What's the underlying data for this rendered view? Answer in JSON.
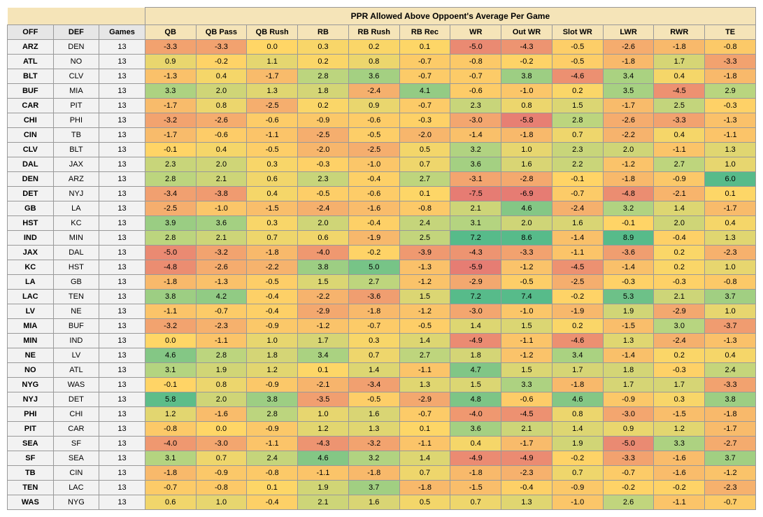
{
  "title": "PPR Allowed Above Oppoent's Average Per Game",
  "fixed_headers": [
    "OFF",
    "DEF",
    "Games"
  ],
  "data_headers": [
    "QB",
    "QB Pass",
    "QB Rush",
    "RB",
    "RB Rush",
    "RB Rec",
    "WR",
    "Out WR",
    "Slot WR",
    "LWR",
    "RWR",
    "TE"
  ],
  "color_scale": {
    "min": -6.0,
    "max": 6.0,
    "colors": [
      {
        "v": -6.0,
        "c": "#e67c73"
      },
      {
        "v": -3.0,
        "c": "#f3a66f"
      },
      {
        "v": 0.0,
        "c": "#ffd666"
      },
      {
        "v": 3.0,
        "c": "#b7d580"
      },
      {
        "v": 6.0,
        "c": "#57bb8a"
      }
    ]
  },
  "rows": [
    {
      "off": "ARZ",
      "def": "DEN",
      "games": 13,
      "vals": [
        -3.3,
        -3.3,
        0.0,
        0.3,
        0.2,
        0.1,
        -5.0,
        -4.3,
        -0.5,
        -2.6,
        -1.8,
        -0.8
      ]
    },
    {
      "off": "ATL",
      "def": "NO",
      "games": 13,
      "vals": [
        0.9,
        -0.2,
        1.1,
        0.2,
        0.8,
        -0.7,
        -0.8,
        -0.2,
        -0.5,
        -1.8,
        1.7,
        -3.3
      ]
    },
    {
      "off": "BLT",
      "def": "CLV",
      "games": 13,
      "vals": [
        -1.3,
        0.4,
        -1.7,
        2.8,
        3.6,
        -0.7,
        -0.7,
        3.8,
        -4.6,
        3.4,
        0.4,
        -1.8
      ]
    },
    {
      "off": "BUF",
      "def": "MIA",
      "games": 13,
      "vals": [
        3.3,
        2.0,
        1.3,
        1.8,
        -2.4,
        4.1,
        -0.6,
        -1.0,
        0.2,
        3.5,
        -4.5,
        2.9
      ]
    },
    {
      "off": "CAR",
      "def": "PIT",
      "games": 13,
      "vals": [
        -1.7,
        0.8,
        -2.5,
        0.2,
        0.9,
        -0.7,
        2.3,
        0.8,
        1.5,
        -1.7,
        2.5,
        -0.3
      ]
    },
    {
      "off": "CHI",
      "def": "PHI",
      "games": 13,
      "vals": [
        -3.2,
        -2.6,
        -0.6,
        -0.9,
        -0.6,
        -0.3,
        -3.0,
        -5.8,
        2.8,
        -2.6,
        -3.3,
        -1.3
      ]
    },
    {
      "off": "CIN",
      "def": "TB",
      "games": 13,
      "vals": [
        -1.7,
        -0.6,
        -1.1,
        -2.5,
        -0.5,
        -2.0,
        -1.4,
        -1.8,
        0.7,
        -2.2,
        0.4,
        -1.1
      ]
    },
    {
      "off": "CLV",
      "def": "BLT",
      "games": 13,
      "vals": [
        -0.1,
        0.4,
        -0.5,
        -2.0,
        -2.5,
        0.5,
        3.2,
        1.0,
        2.3,
        2.0,
        -1.1,
        1.3
      ]
    },
    {
      "off": "DAL",
      "def": "JAX",
      "games": 13,
      "vals": [
        2.3,
        2.0,
        0.3,
        -0.3,
        -1.0,
        0.7,
        3.6,
        1.6,
        2.2,
        -1.2,
        2.7,
        1.0
      ]
    },
    {
      "off": "DEN",
      "def": "ARZ",
      "games": 13,
      "vals": [
        2.8,
        2.1,
        0.6,
        2.3,
        -0.4,
        2.7,
        -3.1,
        -2.8,
        -0.1,
        -1.8,
        -0.9,
        6.0
      ]
    },
    {
      "off": "DET",
      "def": "NYJ",
      "games": 13,
      "vals": [
        -3.4,
        -3.8,
        0.4,
        -0.5,
        -0.6,
        0.1,
        -7.5,
        -6.9,
        -0.7,
        -4.8,
        -2.1,
        0.1
      ]
    },
    {
      "off": "GB",
      "def": "LA",
      "games": 13,
      "vals": [
        -2.5,
        -1.0,
        -1.5,
        -2.4,
        -1.6,
        -0.8,
        2.1,
        4.6,
        -2.4,
        3.2,
        1.4,
        -1.7
      ]
    },
    {
      "off": "HST",
      "def": "KC",
      "games": 13,
      "vals": [
        3.9,
        3.6,
        0.3,
        2.0,
        -0.4,
        2.4,
        3.1,
        2.0,
        1.6,
        -0.1,
        2.0,
        0.4
      ]
    },
    {
      "off": "IND",
      "def": "MIN",
      "games": 13,
      "vals": [
        2.8,
        2.1,
        0.7,
        0.6,
        -1.9,
        2.5,
        7.2,
        8.6,
        -1.4,
        8.9,
        -0.4,
        1.3
      ]
    },
    {
      "off": "JAX",
      "def": "DAL",
      "games": 13,
      "vals": [
        -5.0,
        -3.2,
        -1.8,
        -4.0,
        -0.2,
        -3.9,
        -4.3,
        -3.3,
        -1.1,
        -3.6,
        0.2,
        -2.3
      ]
    },
    {
      "off": "KC",
      "def": "HST",
      "games": 13,
      "vals": [
        -4.8,
        -2.6,
        -2.2,
        3.8,
        5.0,
        -1.3,
        -5.9,
        -1.2,
        -4.5,
        -1.4,
        0.2,
        1.0
      ]
    },
    {
      "off": "LA",
      "def": "GB",
      "games": 13,
      "vals": [
        -1.8,
        -1.3,
        -0.5,
        1.5,
        2.7,
        -1.2,
        -2.9,
        -0.5,
        -2.5,
        -0.3,
        -0.3,
        -0.8
      ]
    },
    {
      "off": "LAC",
      "def": "TEN",
      "games": 13,
      "vals": [
        3.8,
        4.2,
        -0.4,
        -2.2,
        -3.6,
        1.5,
        7.2,
        7.4,
        -0.2,
        5.3,
        2.1,
        3.7
      ]
    },
    {
      "off": "LV",
      "def": "NE",
      "games": 13,
      "vals": [
        -1.1,
        -0.7,
        -0.4,
        -2.9,
        -1.8,
        -1.2,
        -3.0,
        -1.0,
        -1.9,
        1.9,
        -2.9,
        1.0
      ]
    },
    {
      "off": "MIA",
      "def": "BUF",
      "games": 13,
      "vals": [
        -3.2,
        -2.3,
        -0.9,
        -1.2,
        -0.7,
        -0.5,
        1.4,
        1.5,
        0.2,
        -1.5,
        3.0,
        -3.7
      ]
    },
    {
      "off": "MIN",
      "def": "IND",
      "games": 13,
      "vals": [
        0.0,
        -1.1,
        1.0,
        1.7,
        0.3,
        1.4,
        -4.9,
        -1.1,
        -4.6,
        1.3,
        -2.4,
        -1.3
      ]
    },
    {
      "off": "NE",
      "def": "LV",
      "games": 13,
      "vals": [
        4.6,
        2.8,
        1.8,
        3.4,
        0.7,
        2.7,
        1.8,
        -1.2,
        3.4,
        -1.4,
        0.2,
        0.4
      ]
    },
    {
      "off": "NO",
      "def": "ATL",
      "games": 13,
      "vals": [
        3.1,
        1.9,
        1.2,
        0.1,
        1.4,
        -1.1,
        4.7,
        1.5,
        1.7,
        1.8,
        -0.3,
        2.4
      ]
    },
    {
      "off": "NYG",
      "def": "WAS",
      "games": 13,
      "vals": [
        -0.1,
        0.8,
        -0.9,
        -2.1,
        -3.4,
        1.3,
        1.5,
        3.3,
        -1.8,
        1.7,
        1.7,
        -3.3
      ]
    },
    {
      "off": "NYJ",
      "def": "DET",
      "games": 13,
      "vals": [
        5.8,
        2.0,
        3.8,
        -3.5,
        -0.5,
        -2.9,
        4.8,
        -0.6,
        4.6,
        -0.9,
        0.3,
        3.8
      ]
    },
    {
      "off": "PHI",
      "def": "CHI",
      "games": 13,
      "vals": [
        1.2,
        -1.6,
        2.8,
        1.0,
        1.6,
        -0.7,
        -4.0,
        -4.5,
        0.8,
        -3.0,
        -1.5,
        -1.8
      ]
    },
    {
      "off": "PIT",
      "def": "CAR",
      "games": 13,
      "vals": [
        -0.8,
        0.0,
        -0.9,
        1.2,
        1.3,
        0.1,
        3.6,
        2.1,
        1.4,
        0.9,
        1.2,
        -1.7
      ]
    },
    {
      "off": "SEA",
      "def": "SF",
      "games": 13,
      "vals": [
        -4.0,
        -3.0,
        -1.1,
        -4.3,
        -3.2,
        -1.1,
        0.4,
        -1.7,
        1.9,
        -5.0,
        3.3,
        -2.7
      ]
    },
    {
      "off": "SF",
      "def": "SEA",
      "games": 13,
      "vals": [
        3.1,
        0.7,
        2.4,
        4.6,
        3.2,
        1.4,
        -4.9,
        -4.9,
        -0.2,
        -3.3,
        -1.6,
        3.7
      ]
    },
    {
      "off": "TB",
      "def": "CIN",
      "games": 13,
      "vals": [
        -1.8,
        -0.9,
        -0.8,
        -1.1,
        -1.8,
        0.7,
        -1.8,
        -2.3,
        0.7,
        -0.7,
        -1.6,
        -1.2
      ]
    },
    {
      "off": "TEN",
      "def": "LAC",
      "games": 13,
      "vals": [
        -0.7,
        -0.8,
        0.1,
        1.9,
        3.7,
        -1.8,
        -1.5,
        -0.4,
        -0.9,
        -0.2,
        -0.2,
        -2.3
      ]
    },
    {
      "off": "WAS",
      "def": "NYG",
      "games": 13,
      "vals": [
        0.6,
        1.0,
        -0.4,
        2.1,
        1.6,
        0.5,
        0.7,
        1.3,
        -1.0,
        2.6,
        -1.1,
        -0.7
      ]
    }
  ]
}
